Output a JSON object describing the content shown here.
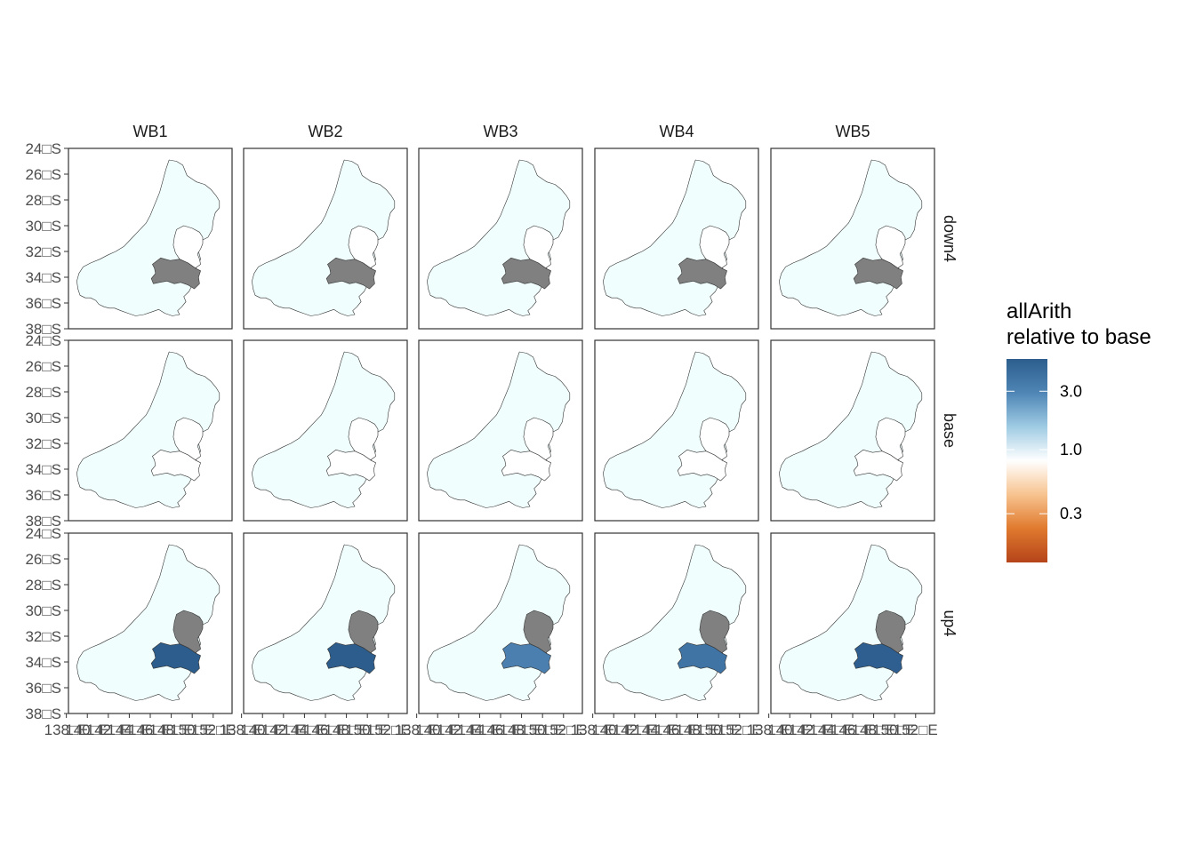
{
  "chart_data": {
    "type": "choropleth-facets",
    "title": "",
    "facet_columns": [
      "WB1",
      "WB2",
      "WB3",
      "WB4",
      "WB5"
    ],
    "facet_rows": [
      "down4",
      "base",
      "up4"
    ],
    "y_ticks": [
      "24□S",
      "26□S",
      "28□S",
      "30□S",
      "32□S",
      "34□S",
      "36□S",
      "38□S"
    ],
    "y_range": [
      -38,
      -24
    ],
    "x_ticks": [
      "138□E",
      "140□E",
      "142□E",
      "144□E",
      "146□E",
      "148□E",
      "150□E",
      "152□E"
    ],
    "x_range": [
      138.2,
      153.8
    ],
    "regions": [
      "basin",
      "north-subcatchment",
      "south-subcatchment"
    ],
    "region_colors": {
      "down4": {
        "WB1": {
          "basin": "#F0FEFE",
          "north-subcatchment": "#FFFFFF",
          "south-subcatchment": "#808080"
        },
        "WB2": {
          "basin": "#F0FEFE",
          "north-subcatchment": "#FFFFFF",
          "south-subcatchment": "#808080"
        },
        "WB3": {
          "basin": "#F0FEFE",
          "north-subcatchment": "#FFFFFF",
          "south-subcatchment": "#808080"
        },
        "WB4": {
          "basin": "#F0FEFE",
          "north-subcatchment": "#FFFFFF",
          "south-subcatchment": "#808080"
        },
        "WB5": {
          "basin": "#F0FEFE",
          "north-subcatchment": "#FFFFFF",
          "south-subcatchment": "#808080"
        }
      },
      "base": {
        "WB1": {
          "basin": "#F0FEFE",
          "north-subcatchment": "#FFFFFF",
          "south-subcatchment": "#FFFFFF"
        },
        "WB2": {
          "basin": "#F0FEFE",
          "north-subcatchment": "#FFFFFF",
          "south-subcatchment": "#FFFFFF"
        },
        "WB3": {
          "basin": "#F0FEFE",
          "north-subcatchment": "#FFFFFF",
          "south-subcatchment": "#FFFFFF"
        },
        "WB4": {
          "basin": "#F0FEFE",
          "north-subcatchment": "#FFFFFF",
          "south-subcatchment": "#FFFFFF"
        },
        "WB5": {
          "basin": "#F0FEFE",
          "north-subcatchment": "#FFFFFF",
          "south-subcatchment": "#FFFFFF"
        }
      },
      "up4": {
        "WB1": {
          "basin": "#F0FEFE",
          "north-subcatchment": "#808080",
          "south-subcatchment": "#2C5D8D"
        },
        "WB2": {
          "basin": "#F0FEFE",
          "north-subcatchment": "#808080",
          "south-subcatchment": "#2C5D8D"
        },
        "WB3": {
          "basin": "#F0FEFE",
          "north-subcatchment": "#808080",
          "south-subcatchment": "#4A7FAF"
        },
        "WB4": {
          "basin": "#F0FEFE",
          "north-subcatchment": "#808080",
          "south-subcatchment": "#3F74A5"
        },
        "WB5": {
          "basin": "#F0FEFE",
          "north-subcatchment": "#808080",
          "south-subcatchment": "#2E5F90"
        }
      }
    },
    "legend": {
      "title_line1": "allArith",
      "title_line2": "relative to base",
      "scale": "log",
      "breaks": [
        3.0,
        1.0,
        0.3
      ],
      "break_labels": [
        "3.0",
        "1.0",
        "0.3"
      ],
      "range": [
        0.12,
        5.5
      ],
      "colors_low_to_high": [
        "#B5441A",
        "#E07A2E",
        "#F7C38F",
        "#FFFFFF",
        "#9FCBE3",
        "#4F86B6",
        "#2C5D8D"
      ],
      "placement": "right"
    }
  }
}
